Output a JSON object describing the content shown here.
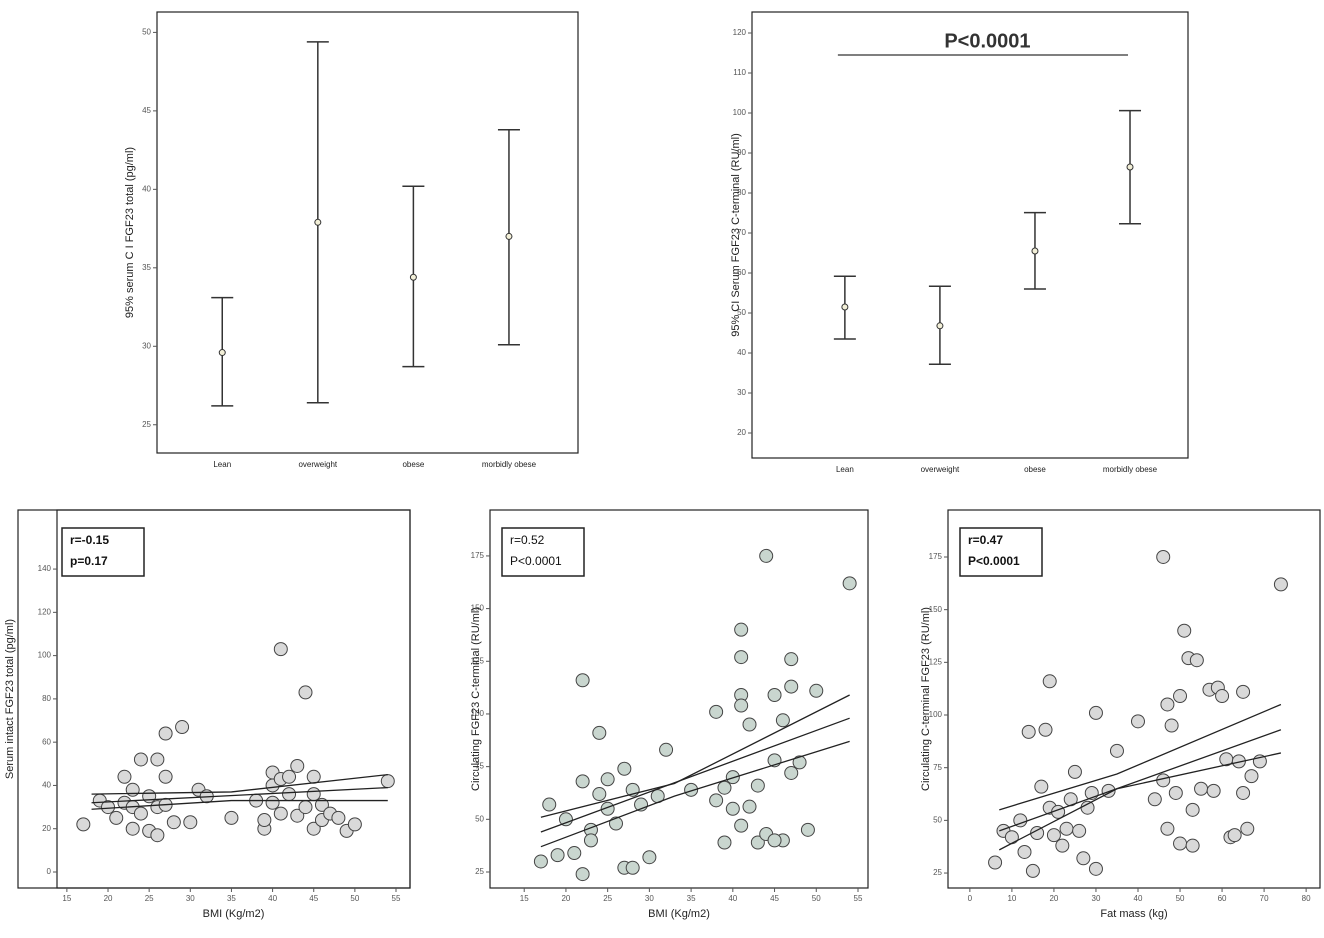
{
  "chart_data": [
    {
      "type": "errorbar",
      "ylabel": "95% serum C I FGF23 total (pg/ml)",
      "categories": [
        "Lean",
        "overweight",
        "obese",
        "morbidly obese"
      ],
      "values": [
        29.6,
        37.9,
        34.4,
        37.0
      ],
      "lower": [
        26.2,
        26.4,
        28.7,
        30.1
      ],
      "upper": [
        33.1,
        49.4,
        40.2,
        43.8
      ],
      "color": "#333333",
      "ylim": [
        23.2,
        51.3
      ],
      "yticks": [
        25,
        30,
        35,
        40,
        45,
        50
      ]
    },
    {
      "type": "errorbar",
      "ylabel": "95% CI Serum FGF23 C-terminal (RU/ml)",
      "categories": [
        "Lean",
        "overweight",
        "obese",
        "morbidly obese"
      ],
      "values": [
        51.5,
        46.8,
        65.5,
        86.5
      ],
      "lower": [
        43.5,
        37.2,
        56.0,
        72.3
      ],
      "upper": [
        59.2,
        56.7,
        75.1,
        100.6
      ],
      "color": "#333333",
      "ylim": [
        13.75,
        125.25
      ],
      "yticks": [
        20,
        30,
        40,
        50,
        60,
        70,
        80,
        90,
        100,
        110,
        120
      ],
      "annotation": {
        "text": "P<0.0001",
        "y": 114.5
      }
    },
    {
      "type": "scatter",
      "xlabel": "BMI (Kg/m2)",
      "ylabel": "Serum intact FGF23 total (pg/ml)",
      "stats": [
        "r=-0.15",
        "p=0.17"
      ],
      "color": "#d9d9d9",
      "x": [
        17,
        19,
        20,
        21,
        22,
        22,
        23,
        23,
        23,
        24,
        24,
        25,
        25,
        26,
        26,
        26,
        27,
        27,
        27,
        28,
        29,
        30,
        31,
        32,
        35,
        38,
        39,
        39,
        40,
        40,
        41,
        41,
        41,
        42,
        43,
        43,
        44,
        44,
        45,
        45,
        45,
        46,
        46,
        47,
        48,
        49,
        50,
        54,
        42,
        40
      ],
      "y": [
        22,
        33,
        30,
        25,
        44,
        32,
        38,
        20,
        30,
        27,
        52,
        35,
        19,
        52,
        17,
        30,
        64,
        44,
        31,
        23,
        67,
        23,
        38,
        35,
        25,
        33,
        20,
        24,
        46,
        40,
        43,
        27,
        103,
        36,
        49,
        26,
        83,
        30,
        44,
        20,
        36,
        24,
        31,
        27,
        25,
        19,
        22,
        42,
        44,
        32
      ],
      "lines": [
        {
          "x": [
            18,
            35,
            54
          ],
          "y": [
            36,
            37,
            45
          ]
        },
        {
          "x": [
            18,
            54
          ],
          "y": [
            32,
            39
          ]
        },
        {
          "x": [
            18,
            35,
            54
          ],
          "y": [
            29,
            33,
            33
          ]
        }
      ],
      "xlim": [
        13.8,
        56.7
      ],
      "ylim": [
        -7.4,
        167.3
      ],
      "xticks": [
        15,
        20,
        25,
        30,
        35,
        40,
        45,
        50,
        55
      ],
      "yticks": [
        0,
        20,
        40,
        60,
        80,
        100,
        120,
        140
      ]
    },
    {
      "type": "scatter",
      "xlabel": "BMI (Kg/m2)",
      "ylabel": "Circulating FGF23 C-terminal (RU/ml)",
      "stats": [
        "r=0.52",
        "P<0.0001"
      ],
      "color": "#c9d6cf",
      "x": [
        17,
        18,
        19,
        20,
        21,
        22,
        22,
        22,
        23,
        23,
        24,
        24,
        25,
        25,
        26,
        27,
        27,
        28,
        28,
        29,
        30,
        31,
        32,
        35,
        38,
        38,
        39,
        39,
        40,
        40,
        41,
        41,
        41,
        41,
        42,
        42,
        43,
        43,
        44,
        44,
        45,
        45,
        46,
        46,
        47,
        47,
        47,
        48,
        49,
        50,
        54,
        41,
        45
      ],
      "y": [
        30,
        57,
        33,
        50,
        34,
        68,
        24,
        116,
        45,
        40,
        91,
        62,
        69,
        55,
        48,
        27,
        74,
        64,
        27,
        57,
        32,
        61,
        83,
        64,
        101,
        59,
        65,
        39,
        70,
        55,
        140,
        127,
        109,
        47,
        95,
        56,
        66,
        39,
        175,
        43,
        109,
        78,
        97,
        40,
        113,
        126,
        72,
        77,
        45,
        111,
        162,
        104,
        40
      ],
      "lines": [
        {
          "x": [
            17,
            33,
            54
          ],
          "y": [
            51,
            67,
            109
          ]
        },
        {
          "x": [
            17,
            54
          ],
          "y": [
            44,
            98
          ]
        },
        {
          "x": [
            17,
            33,
            54
          ],
          "y": [
            37,
            61,
            87
          ]
        }
      ],
      "xlim": [
        10.9,
        56.2
      ],
      "ylim": [
        17.4,
        196.8
      ],
      "xticks": [
        15,
        20,
        25,
        30,
        35,
        40,
        45,
        50,
        55
      ],
      "yticks": [
        25,
        50,
        75,
        100,
        125,
        150,
        175
      ]
    },
    {
      "type": "scatter",
      "xlabel": "Fat mass (kg)",
      "ylabel": "Circulating C-terminal FGF23 (RU/ml)",
      "stats": [
        "r=0.47",
        "P<0.0001"
      ],
      "color": "#d9d9d9",
      "x": [
        6,
        8,
        10,
        12,
        13,
        14,
        15,
        16,
        17,
        18,
        19,
        19,
        20,
        21,
        22,
        23,
        24,
        25,
        26,
        27,
        28,
        29,
        30,
        30,
        33,
        35,
        40,
        44,
        46,
        46,
        47,
        47,
        48,
        49,
        50,
        50,
        51,
        52,
        53,
        53,
        54,
        55,
        57,
        58,
        59,
        60,
        61,
        62,
        63,
        64,
        65,
        65,
        66,
        67,
        69,
        74
      ],
      "y": [
        30,
        45,
        42,
        50,
        35,
        92,
        26,
        44,
        66,
        93,
        116,
        56,
        43,
        54,
        38,
        46,
        60,
        73,
        45,
        32,
        56,
        63,
        101,
        27,
        64,
        83,
        97,
        60,
        175,
        69,
        105,
        46,
        95,
        63,
        39,
        109,
        140,
        127,
        55,
        38,
        126,
        65,
        112,
        64,
        113,
        109,
        79,
        42,
        43,
        78,
        63,
        111,
        46,
        71,
        78,
        162
      ],
      "lines": [
        {
          "x": [
            7,
            35,
            74
          ],
          "y": [
            55,
            72,
            105
          ]
        },
        {
          "x": [
            7,
            74
          ],
          "y": [
            45,
            93
          ]
        },
        {
          "x": [
            7,
            35,
            74
          ],
          "y": [
            36,
            65,
            82
          ]
        }
      ],
      "xlim": [
        -5.2,
        83.3
      ],
      "ylim": [
        17.9,
        197.3
      ],
      "xticks": [
        0,
        10,
        20,
        30,
        40,
        50,
        60,
        70,
        80
      ],
      "yticks": [
        25,
        50,
        75,
        100,
        125,
        150,
        175
      ]
    }
  ]
}
